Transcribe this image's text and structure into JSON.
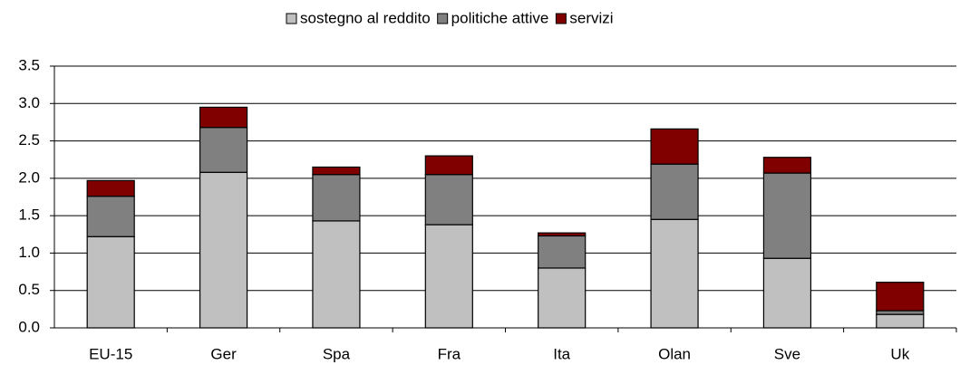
{
  "chart_data": {
    "type": "stacked_bar",
    "categories": [
      "EU-15",
      "Ger",
      "Spa",
      "Fra",
      "Ita",
      "Olan",
      "Sve",
      "Uk"
    ],
    "series": [
      {
        "name": "sostegno al reddito",
        "color": "#c0c0c0",
        "values": [
          1.22,
          2.08,
          1.43,
          1.38,
          0.8,
          1.45,
          0.93,
          0.18
        ]
      },
      {
        "name": "politiche attive",
        "color": "#808080",
        "values": [
          0.54,
          0.6,
          0.62,
          0.67,
          0.43,
          0.74,
          1.14,
          0.05
        ]
      },
      {
        "name": "servizi",
        "color": "#800000",
        "values": [
          0.21,
          0.27,
          0.1,
          0.25,
          0.04,
          0.47,
          0.21,
          0.38
        ]
      }
    ],
    "ylim": [
      0,
      3.5
    ],
    "yticks": [
      {
        "value": 0,
        "label": "0.0"
      },
      0.5,
      {
        "value": 1,
        "label": "1.0"
      },
      1.5,
      {
        "value": 2,
        "label": "2.0"
      },
      2.5,
      {
        "value": 3,
        "label": "3.0"
      },
      3.5
    ],
    "grid": true,
    "legend": "top"
  }
}
